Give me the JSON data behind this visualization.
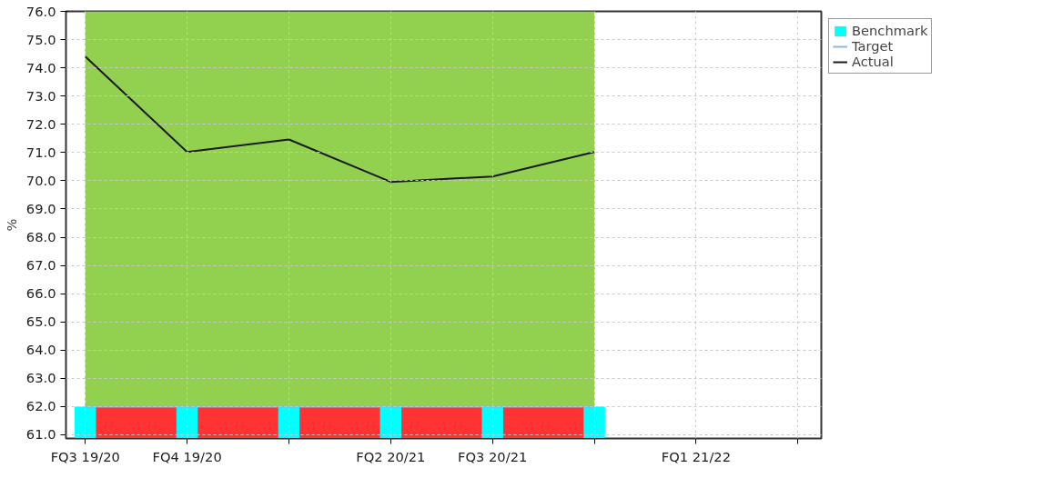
{
  "chart_data": {
    "type": "line",
    "ylabel": "%",
    "categories": [
      "FQ3 19/20",
      "FQ4 19/20",
      null,
      "FQ2 20/21",
      "FQ3 20/21",
      null,
      "FQ1 21/22",
      null
    ],
    "ylim": [
      60.87,
      76
    ],
    "yticks": [
      {
        "value": 61,
        "label": "61.0"
      },
      {
        "value": 62,
        "label": "62.0"
      },
      {
        "value": 63,
        "label": "63.0"
      },
      {
        "value": 64,
        "label": "64.0"
      },
      {
        "value": 65,
        "label": "65.0"
      },
      {
        "value": 66,
        "label": "66.0"
      },
      {
        "value": 67,
        "label": "67.0"
      },
      {
        "value": 68,
        "label": "68.0"
      },
      {
        "value": 69,
        "label": "69.0"
      },
      {
        "value": 70,
        "label": "70.0"
      },
      {
        "value": 71,
        "label": "71.0"
      },
      {
        "value": 72,
        "label": "72.0"
      },
      {
        "value": 73,
        "label": "73.0"
      },
      {
        "value": 74,
        "label": "74.0"
      },
      {
        "value": 75,
        "label": "75.0"
      },
      {
        "value": 76,
        "label": "76.0"
      }
    ],
    "grid": true,
    "legend": "top right",
    "line_style": "solid",
    "marker": "none",
    "series": [
      {
        "type": "area",
        "color": "#92d050",
        "values": [
          76,
          76,
          76,
          76,
          76,
          76,
          null,
          null
        ]
      },
      {
        "type": "area",
        "color": "#ff3333",
        "values": [
          62,
          62,
          62,
          62,
          62,
          62,
          null,
          null
        ]
      },
      {
        "type": "bar",
        "name": "Benchmark",
        "color": "#00ffff",
        "values": [
          62,
          62,
          62,
          62,
          62,
          62,
          null,
          null
        ]
      },
      {
        "name": "Target",
        "color": "#8fb4d8",
        "values": [
          62,
          62,
          62,
          62,
          62,
          62,
          null,
          null
        ]
      },
      {
        "name": "Actual",
        "color": "#1a1a1a",
        "values": [
          74.4,
          71.02,
          71.46,
          69.96,
          70.15,
          71.02,
          null,
          null
        ]
      }
    ]
  }
}
